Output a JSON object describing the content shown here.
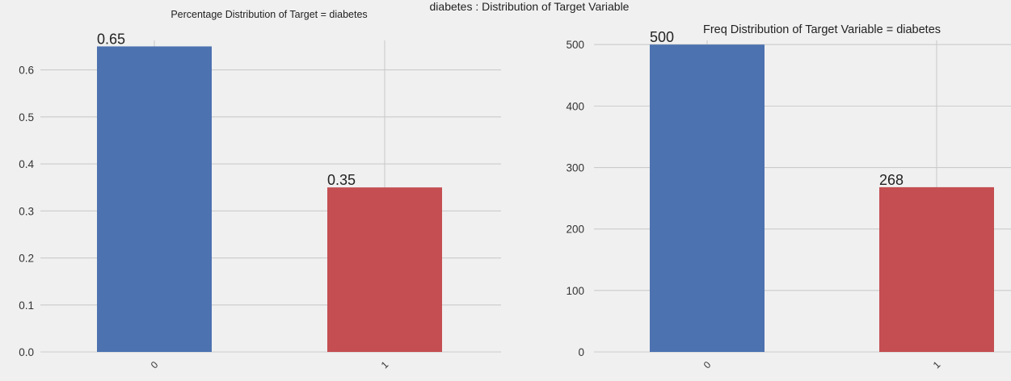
{
  "figure": {
    "suptitle": "diabetes : Distribution of Target Variable"
  },
  "chart_data": [
    {
      "type": "bar",
      "title": "Percentage Distribution of Target = diabetes",
      "categories": [
        "0",
        "1"
      ],
      "values": [
        0.65,
        0.35
      ],
      "value_labels": [
        "0.65",
        "0.35"
      ],
      "ylim": [
        0,
        0.68
      ],
      "yticks": [
        "0.0",
        "0.1",
        "0.2",
        "0.3",
        "0.4",
        "0.5",
        "0.6"
      ],
      "ytick_values": [
        0,
        0.1,
        0.2,
        0.3,
        0.4,
        0.5,
        0.6
      ],
      "colors": [
        "#4c72b0",
        "#c44e52"
      ],
      "grid": true,
      "xlabel": "",
      "ylabel": ""
    },
    {
      "type": "bar",
      "title": "Freq Distribution of Target Variable = diabetes",
      "categories": [
        "0",
        "1"
      ],
      "values": [
        500,
        268
      ],
      "value_labels": [
        "500",
        "268"
      ],
      "ylim": [
        0,
        520
      ],
      "yticks": [
        "0",
        "100",
        "200",
        "300",
        "400",
        "500"
      ],
      "ytick_values": [
        0,
        100,
        200,
        300,
        400,
        500
      ],
      "colors": [
        "#4c72b0",
        "#c44e52"
      ],
      "grid": true,
      "xlabel": "",
      "ylabel": ""
    }
  ]
}
